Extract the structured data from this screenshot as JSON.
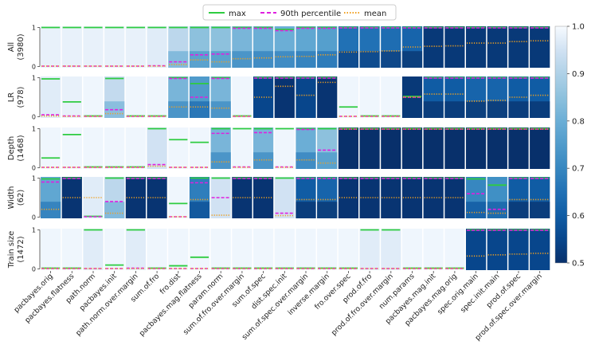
{
  "chart_data": {
    "type": "heatmap",
    "title": "",
    "legend": {
      "position": "top-center",
      "entries": [
        {
          "name": "max",
          "style": "solid",
          "color": "#2ecc40"
        },
        {
          "name": "90th percentile",
          "style": "dashed",
          "color": "#e020e0"
        },
        {
          "name": "mean",
          "style": "dotted",
          "color": "#f0a020"
        }
      ]
    },
    "columns": [
      "pacbayes.orig",
      "pacbayes.flatness",
      "path.norm",
      "pacbayes.init",
      "path.norm.over.margin",
      "sum.of.fro",
      "fro.dist",
      "pacbayes.mag.flatness",
      "param.norm",
      "sum.of.fro.over.margin",
      "sum.of.spec",
      "dist.spec.init",
      "sum.of.spec.over.margin",
      "inverse.margin",
      "fro.over.spec",
      "prod.of.fro",
      "prod.of.fro.over.margin",
      "num.params",
      "pacbayes.mag.init",
      "pacbayes.mag.orig",
      "spec.orig.main",
      "spec.init.main",
      "prod.of.spec",
      "prod.of.spec.over.margin"
    ],
    "rows": [
      {
        "label": "All",
        "count": "(3980)",
        "yticks": [
          "0",
          "1"
        ],
        "cells": [
          {
            "max": 1.0,
            "p90": 0.01,
            "mean": 0.01,
            "shade": 0.98
          },
          {
            "max": 1.0,
            "p90": 0.01,
            "mean": 0.01,
            "shade": 0.98
          },
          {
            "max": 1.0,
            "p90": 0.01,
            "mean": 0.01,
            "shade": 0.98
          },
          {
            "max": 1.0,
            "p90": 0.01,
            "mean": 0.01,
            "shade": 0.98
          },
          {
            "max": 1.0,
            "p90": 0.01,
            "mean": 0.01,
            "shade": 0.98
          },
          {
            "max": 1.0,
            "p90": 0.02,
            "mean": 0.01,
            "shade": 0.97
          },
          {
            "max": 1.0,
            "p90": 0.12,
            "mean": 0.05,
            "shade": 0.92
          },
          {
            "max": 1.0,
            "p90": 0.3,
            "mean": 0.17,
            "shade": 0.85
          },
          {
            "max": 1.0,
            "p90": 0.32,
            "mean": 0.12,
            "shade": 0.85
          },
          {
            "max": 1.0,
            "p90": 0.98,
            "mean": 0.2,
            "shade": 0.82
          },
          {
            "max": 1.0,
            "p90": 0.98,
            "mean": 0.22,
            "shade": 0.8
          },
          {
            "max": 0.95,
            "p90": 0.92,
            "mean": 0.25,
            "shade": 0.8
          },
          {
            "max": 1.0,
            "p90": 0.98,
            "mean": 0.26,
            "shade": 0.78
          },
          {
            "max": 1.0,
            "p90": 0.98,
            "mean": 0.3,
            "shade": 0.76
          },
          {
            "max": 1.0,
            "p90": 0.99,
            "mean": 0.37,
            "shade": 0.65
          },
          {
            "max": 1.0,
            "p90": 0.99,
            "mean": 0.38,
            "shade": 0.65
          },
          {
            "max": 1.0,
            "p90": 0.99,
            "mean": 0.4,
            "shade": 0.64
          },
          {
            "max": 1.0,
            "p90": 0.99,
            "mean": 0.5,
            "shade": 0.62
          },
          {
            "max": 1.0,
            "p90": 0.99,
            "mean": 0.52,
            "shade": 0.52
          },
          {
            "max": 1.0,
            "p90": 0.99,
            "mean": 0.53,
            "shade": 0.52
          },
          {
            "max": 1.0,
            "p90": 0.99,
            "mean": 0.6,
            "shade": 0.52
          },
          {
            "max": 1.0,
            "p90": 0.99,
            "mean": 0.6,
            "shade": 0.52
          },
          {
            "max": 1.0,
            "p90": 0.99,
            "mean": 0.64,
            "shade": 0.52
          },
          {
            "max": 1.0,
            "p90": 0.99,
            "mean": 0.66,
            "shade": 0.52
          }
        ]
      },
      {
        "label": "LR",
        "count": "(978)",
        "yticks": [
          "0",
          "1"
        ],
        "cells": [
          {
            "max": 0.97,
            "p90": 0.05,
            "mean": 0.02,
            "shade": 0.97
          },
          {
            "max": 0.38,
            "p90": 0.02,
            "mean": 0.01,
            "shade": 0.98
          },
          {
            "max": 0.02,
            "p90": 0.01,
            "mean": 0.01,
            "shade": 0.99
          },
          {
            "max": 0.98,
            "p90": 0.18,
            "mean": 0.08,
            "shade": 0.93
          },
          {
            "max": 0.02,
            "p90": 0.01,
            "mean": 0.01,
            "shade": 0.99
          },
          {
            "max": 0.02,
            "p90": 0.01,
            "mean": 0.01,
            "shade": 0.99
          },
          {
            "max": 1.0,
            "p90": 0.98,
            "mean": 0.25,
            "shade": 0.82
          },
          {
            "max": 0.85,
            "p90": 0.5,
            "mean": 0.25,
            "shade": 0.75
          },
          {
            "max": 1.0,
            "p90": 0.98,
            "mean": 0.22,
            "shade": 0.82
          },
          {
            "max": 0.02,
            "p90": 0.01,
            "mean": 0.01,
            "shade": 0.99
          },
          {
            "max": 1.0,
            "p90": 0.99,
            "mean": 0.5,
            "shade": 0.55
          },
          {
            "max": 1.0,
            "p90": 0.99,
            "mean": 0.78,
            "shade": 0.51
          },
          {
            "max": 1.0,
            "p90": 0.99,
            "mean": 0.55,
            "shade": 0.55
          },
          {
            "max": 1.0,
            "p90": 0.99,
            "mean": 0.88,
            "shade": 0.51
          },
          {
            "max": 0.25,
            "p90": 0.01,
            "mean": 0.01,
            "shade": 0.99
          },
          {
            "max": 0.02,
            "p90": 0.01,
            "mean": 0.01,
            "shade": 0.99
          },
          {
            "max": 0.02,
            "p90": 0.01,
            "mean": 0.01,
            "shade": 0.99
          },
          {
            "max": 0.52,
            "p90": 0.5,
            "mean": 0.5,
            "shade": 0.52
          },
          {
            "max": 1.0,
            "p90": 0.99,
            "mean": 0.58,
            "shade": 0.6
          },
          {
            "max": 1.0,
            "p90": 0.99,
            "mean": 0.58,
            "shade": 0.6
          },
          {
            "max": 1.0,
            "p90": 0.99,
            "mean": 0.4,
            "shade": 0.62
          },
          {
            "max": 1.0,
            "p90": 0.99,
            "mean": 0.42,
            "shade": 0.62
          },
          {
            "max": 1.0,
            "p90": 0.99,
            "mean": 0.5,
            "shade": 0.6
          },
          {
            "max": 1.0,
            "p90": 0.99,
            "mean": 0.55,
            "shade": 0.6
          }
        ]
      },
      {
        "label": "Depth",
        "count": "(1468)",
        "yticks": [
          "0",
          "1"
        ],
        "cells": [
          {
            "max": 0.25,
            "p90": 0.01,
            "mean": 0.01,
            "shade": 0.99
          },
          {
            "max": 0.85,
            "p90": 0.01,
            "mean": 0.01,
            "shade": 0.99
          },
          {
            "max": 0.02,
            "p90": 0.01,
            "mean": 0.01,
            "shade": 0.99
          },
          {
            "max": 0.02,
            "p90": 0.01,
            "mean": 0.01,
            "shade": 0.99
          },
          {
            "max": 0.02,
            "p90": 0.01,
            "mean": 0.01,
            "shade": 0.99
          },
          {
            "max": 1.0,
            "p90": 0.08,
            "mean": 0.04,
            "shade": 0.95
          },
          {
            "max": 0.72,
            "p90": 0.01,
            "mean": 0.01,
            "shade": 0.99
          },
          {
            "max": 0.65,
            "p90": 0.01,
            "mean": 0.01,
            "shade": 0.99
          },
          {
            "max": 1.0,
            "p90": 0.88,
            "mean": 0.15,
            "shade": 0.82
          },
          {
            "max": 1.0,
            "p90": 0.02,
            "mean": 0.01,
            "shade": 0.99
          },
          {
            "max": 1.0,
            "p90": 0.9,
            "mean": 0.2,
            "shade": 0.82
          },
          {
            "max": 1.0,
            "p90": 0.02,
            "mean": 0.01,
            "shade": 0.99
          },
          {
            "max": 1.0,
            "p90": 0.98,
            "mean": 0.2,
            "shade": 0.8
          },
          {
            "max": 1.0,
            "p90": 0.45,
            "mean": 0.12,
            "shade": 0.85
          },
          {
            "max": 1.0,
            "p90": 0.99,
            "mean": 0.99,
            "shade": 0.5
          },
          {
            "max": 1.0,
            "p90": 0.99,
            "mean": 0.99,
            "shade": 0.5
          },
          {
            "max": 1.0,
            "p90": 0.99,
            "mean": 0.99,
            "shade": 0.5
          },
          {
            "max": 1.0,
            "p90": 0.99,
            "mean": 0.99,
            "shade": 0.5
          },
          {
            "max": 1.0,
            "p90": 0.99,
            "mean": 0.99,
            "shade": 0.5
          },
          {
            "max": 1.0,
            "p90": 0.99,
            "mean": 0.99,
            "shade": 0.5
          },
          {
            "max": 1.0,
            "p90": 0.99,
            "mean": 0.99,
            "shade": 0.5
          },
          {
            "max": 1.0,
            "p90": 0.99,
            "mean": 0.99,
            "shade": 0.5
          },
          {
            "max": 1.0,
            "p90": 0.99,
            "mean": 0.99,
            "shade": 0.5
          },
          {
            "max": 1.0,
            "p90": 0.99,
            "mean": 0.99,
            "shade": 0.5
          }
        ]
      },
      {
        "label": "Width",
        "count": "(62)",
        "yticks": [
          "0",
          "1"
        ],
        "cells": [
          {
            "max": 0.98,
            "p90": 0.9,
            "mean": 0.2,
            "shade": 0.78
          },
          {
            "max": 1.0,
            "p90": 0.99,
            "mean": 0.5,
            "shade": 0.51
          },
          {
            "max": 0.02,
            "p90": 0.01,
            "mean": 0.5,
            "shade": 0.97
          },
          {
            "max": 1.0,
            "p90": 0.4,
            "mean": 0.1,
            "shade": 0.92
          },
          {
            "max": 1.0,
            "p90": 0.99,
            "mean": 0.5,
            "shade": 0.51
          },
          {
            "max": 1.0,
            "p90": 0.99,
            "mean": 0.5,
            "shade": 0.51
          },
          {
            "max": 0.35,
            "p90": 0.01,
            "mean": 0.01,
            "shade": 0.99
          },
          {
            "max": 1.0,
            "p90": 0.88,
            "mean": 0.45,
            "shade": 0.68
          },
          {
            "max": 1.0,
            "p90": 0.5,
            "mean": 0.05,
            "shade": 0.95
          },
          {
            "max": 1.0,
            "p90": 0.99,
            "mean": 0.5,
            "shade": 0.51
          },
          {
            "max": 1.0,
            "p90": 0.99,
            "mean": 0.5,
            "shade": 0.51
          },
          {
            "max": 1.0,
            "p90": 0.1,
            "mean": 0.04,
            "shade": 0.95
          },
          {
            "max": 1.0,
            "p90": 0.99,
            "mean": 0.45,
            "shade": 0.6
          },
          {
            "max": 1.0,
            "p90": 0.99,
            "mean": 0.45,
            "shade": 0.62
          },
          {
            "max": 1.0,
            "p90": 0.99,
            "mean": 0.5,
            "shade": 0.51
          },
          {
            "max": 1.0,
            "p90": 0.99,
            "mean": 0.5,
            "shade": 0.51
          },
          {
            "max": 1.0,
            "p90": 0.99,
            "mean": 0.5,
            "shade": 0.51
          },
          {
            "max": 1.0,
            "p90": 0.99,
            "mean": 0.5,
            "shade": 0.51
          },
          {
            "max": 1.0,
            "p90": 0.99,
            "mean": 0.5,
            "shade": 0.51
          },
          {
            "max": 1.0,
            "p90": 0.99,
            "mean": 0.5,
            "shade": 0.51
          },
          {
            "max": 0.98,
            "p90": 0.6,
            "mean": 0.12,
            "shade": 0.7
          },
          {
            "max": 0.82,
            "p90": 0.2,
            "mean": 0.1,
            "shade": 0.72
          },
          {
            "max": 1.0,
            "p90": 0.99,
            "mean": 0.45,
            "shade": 0.6
          },
          {
            "max": 1.0,
            "p90": 0.99,
            "mean": 0.45,
            "shade": 0.6
          }
        ]
      },
      {
        "label": "Train size",
        "count": "(1472)",
        "yticks": [
          "0",
          "1"
        ],
        "cells": [
          {
            "max": 0.02,
            "p90": 0.01,
            "mean": 0.01,
            "shade": 0.99
          },
          {
            "max": 0.02,
            "p90": 0.01,
            "mean": 0.01,
            "shade": 0.99
          },
          {
            "max": 1.0,
            "p90": 0.01,
            "mean": 0.01,
            "shade": 0.97
          },
          {
            "max": 0.1,
            "p90": 0.01,
            "mean": 0.01,
            "shade": 0.99
          },
          {
            "max": 1.0,
            "p90": 0.02,
            "mean": 0.01,
            "shade": 0.97
          },
          {
            "max": 0.02,
            "p90": 0.01,
            "mean": 0.01,
            "shade": 0.99
          },
          {
            "max": 0.08,
            "p90": 0.01,
            "mean": 0.01,
            "shade": 0.99
          },
          {
            "max": 0.3,
            "p90": 0.01,
            "mean": 0.01,
            "shade": 0.99
          },
          {
            "max": 0.02,
            "p90": 0.01,
            "mean": 0.01,
            "shade": 0.99
          },
          {
            "max": 0.02,
            "p90": 0.01,
            "mean": 0.01,
            "shade": 0.99
          },
          {
            "max": 0.02,
            "p90": 0.01,
            "mean": 0.01,
            "shade": 0.99
          },
          {
            "max": 0.02,
            "p90": 0.01,
            "mean": 0.01,
            "shade": 0.99
          },
          {
            "max": 0.02,
            "p90": 0.01,
            "mean": 0.01,
            "shade": 0.99
          },
          {
            "max": 0.02,
            "p90": 0.01,
            "mean": 0.01,
            "shade": 0.99
          },
          {
            "max": 0.02,
            "p90": 0.01,
            "mean": 0.01,
            "shade": 0.99
          },
          {
            "max": 1.0,
            "p90": 0.01,
            "mean": 0.01,
            "shade": 0.97
          },
          {
            "max": 1.0,
            "p90": 0.01,
            "mean": 0.01,
            "shade": 0.97
          },
          {
            "max": 0.02,
            "p90": 0.01,
            "mean": 0.01,
            "shade": 0.99
          },
          {
            "max": 0.02,
            "p90": 0.01,
            "mean": 0.01,
            "shade": 0.99
          },
          {
            "max": 0.02,
            "p90": 0.01,
            "mean": 0.01,
            "shade": 0.99
          },
          {
            "max": 1.0,
            "p90": 0.99,
            "mean": 0.33,
            "shade": 0.55
          },
          {
            "max": 1.0,
            "p90": 0.99,
            "mean": 0.36,
            "shade": 0.55
          },
          {
            "max": 1.0,
            "p90": 0.99,
            "mean": 0.38,
            "shade": 0.55
          },
          {
            "max": 1.0,
            "p90": 0.99,
            "mean": 0.4,
            "shade": 0.55
          }
        ]
      }
    ],
    "colorbar": {
      "range": [
        0.5,
        1.0
      ],
      "ticks": [
        "1.0",
        "0.9",
        "0.8",
        "0.7",
        "0.6",
        "0.5"
      ],
      "colormap": "Blues_r"
    }
  }
}
